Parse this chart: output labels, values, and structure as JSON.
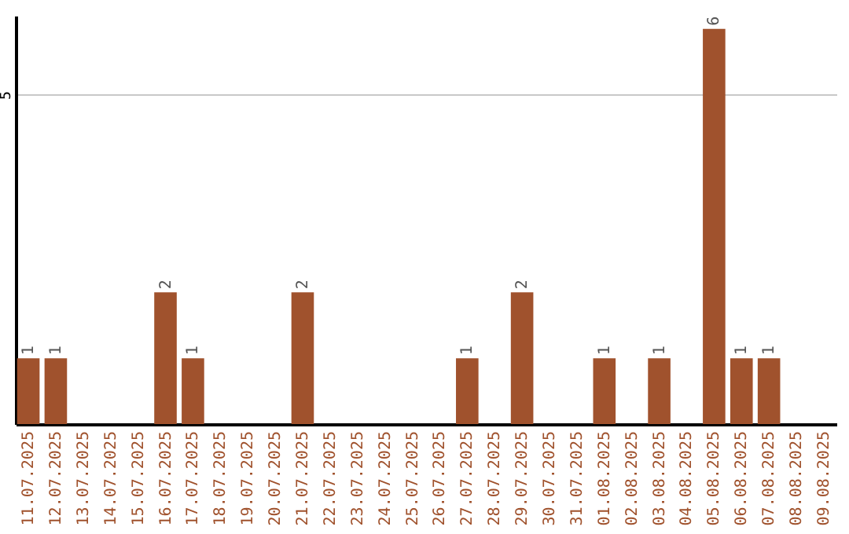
{
  "chart_data": {
    "type": "bar",
    "categories": [
      "11.07.2025",
      "12.07.2025",
      "13.07.2025",
      "14.07.2025",
      "15.07.2025",
      "16.07.2025",
      "17.07.2025",
      "18.07.2025",
      "19.07.2025",
      "20.07.2025",
      "21.07.2025",
      "22.07.2025",
      "23.07.2025",
      "24.07.2025",
      "25.07.2025",
      "26.07.2025",
      "27.07.2025",
      "28.07.2025",
      "29.07.2025",
      "30.07.2025",
      "31.07.2025",
      "01.08.2025",
      "02.08.2025",
      "03.08.2025",
      "04.08.2025",
      "05.08.2025",
      "06.08.2025",
      "07.08.2025",
      "08.08.2025",
      "09.08.2025"
    ],
    "values": [
      1,
      1,
      null,
      null,
      null,
      2,
      1,
      null,
      null,
      null,
      2,
      null,
      null,
      null,
      null,
      null,
      1,
      null,
      2,
      null,
      null,
      1,
      null,
      1,
      null,
      6,
      1,
      1,
      null,
      null
    ],
    "color": "#a0522d",
    "ylim": [
      0,
      6.2
    ],
    "yticks": [
      5
    ],
    "grid": "y",
    "data_labels": true
  }
}
